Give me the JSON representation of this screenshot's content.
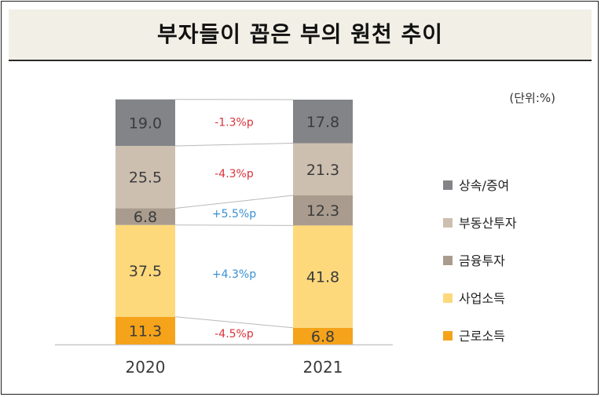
{
  "title": "부자들이 꼽은 부의 원천 추이",
  "unit_label": "(단위:%)",
  "chart_data": {
    "type": "bar",
    "stacked": true,
    "categories": [
      "2020",
      "2021"
    ],
    "series": [
      {
        "name": "근로소득",
        "values": [
          11.3,
          6.8
        ],
        "color": "#f5a31a",
        "change": "-4.5%p",
        "change_color": "#d9343c"
      },
      {
        "name": "사업소득",
        "values": [
          37.5,
          41.8
        ],
        "color": "#fdd97c",
        "change": "+4.3%p",
        "change_color": "#3a8fd2"
      },
      {
        "name": "금융투자",
        "values": [
          6.8,
          12.3
        ],
        "color": "#a99c8e",
        "change": "+5.5%p",
        "change_color": "#3a8fd2"
      },
      {
        "name": "부동산투자",
        "values": [
          25.5,
          21.3
        ],
        "color": "#cdbfb0",
        "change": "-4.3%p",
        "change_color": "#d9343c"
      },
      {
        "name": "상속/증여",
        "values": [
          19.0,
          17.8
        ],
        "color": "#838488",
        "change": "-1.3%p",
        "change_color": "#d9343c"
      }
    ],
    "legend_order": [
      "상속/증여",
      "부동산투자",
      "금융투자",
      "사업소득",
      "근로소득"
    ],
    "value_labels": [
      [
        "11.3",
        "37.5",
        "6.8",
        "25.5",
        "19.0"
      ],
      [
        "6.8",
        "41.8",
        "12.3",
        "21.3",
        "17.8"
      ]
    ],
    "ylim": [
      0,
      100
    ],
    "legend_position": "right",
    "grid": false
  }
}
